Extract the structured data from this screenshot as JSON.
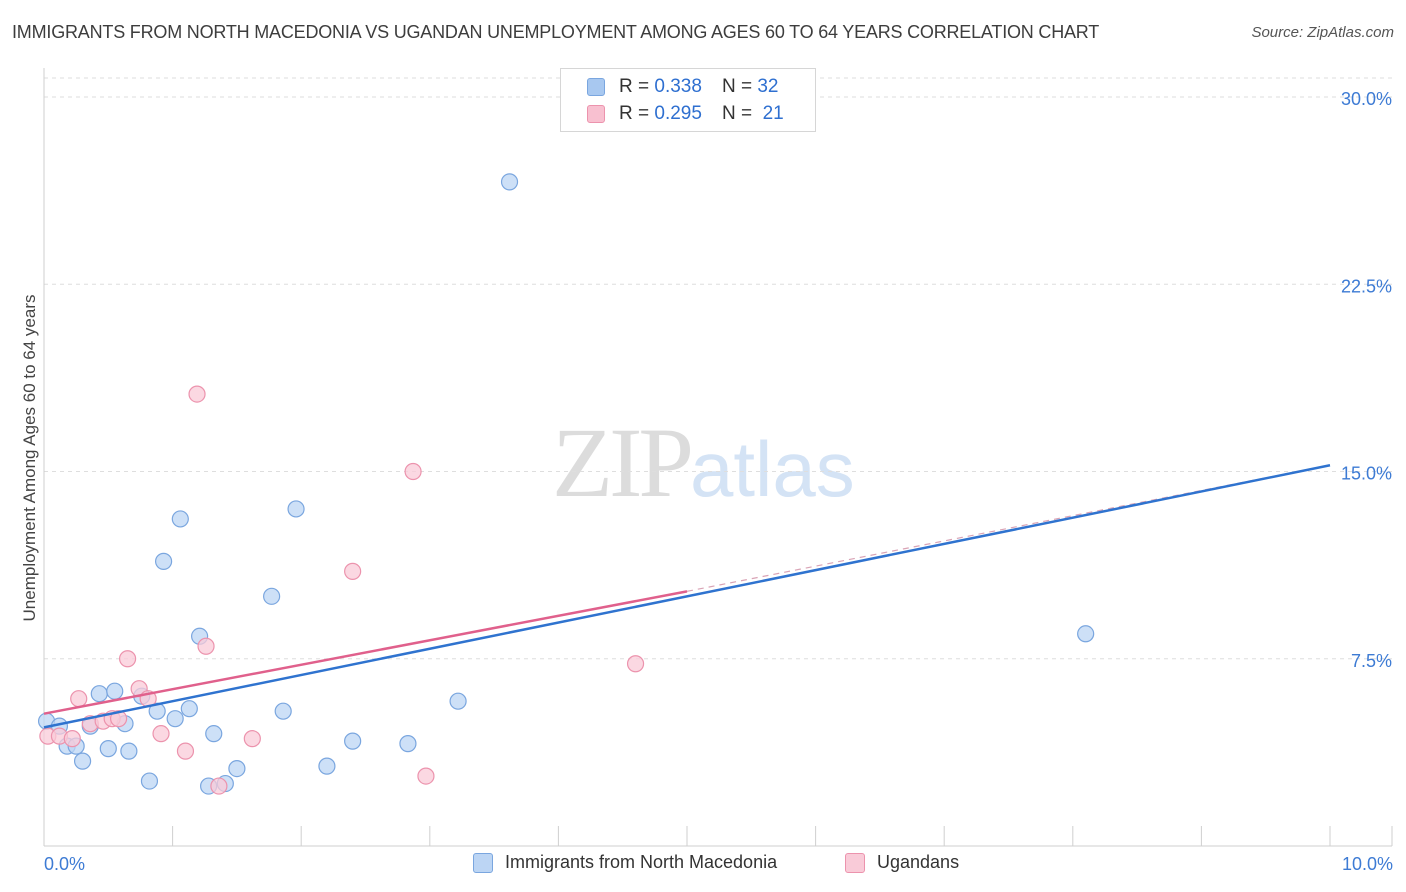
{
  "header": {
    "title": "IMMIGRANTS FROM NORTH MACEDONIA VS UGANDAN UNEMPLOYMENT AMONG AGES 60 TO 64 YEARS CORRELATION CHART",
    "source": "Source: ZipAtlas.com"
  },
  "watermark": {
    "zip": "ZIP",
    "atlas": "atlas"
  },
  "legend": {
    "r_label": "R =",
    "n_label": "N =",
    "rows": [
      {
        "r": "0.338",
        "n": "32",
        "color": "#a8c8f0",
        "border": "#7aa6df"
      },
      {
        "r": "0.295",
        "n": "21",
        "color": "#f8c0d0",
        "border": "#ec93ad"
      }
    ]
  },
  "bottom_legend": [
    {
      "label": "Immigrants from North Macedonia",
      "color": "#bcd5f4",
      "border": "#7aa6df"
    },
    {
      "label": "Ugandans",
      "color": "#f9cbd8",
      "border": "#ec93ad"
    }
  ],
  "chart_data": {
    "type": "scatter",
    "title": "IMMIGRANTS FROM NORTH MACEDONIA VS UGANDAN UNEMPLOYMENT AMONG AGES 60 TO 64 YEARS CORRELATION CHART",
    "xlabel": "",
    "ylabel": "Unemployment Among Ages 60 to 64 years",
    "xlim": [
      0,
      10
    ],
    "ylim": [
      0,
      31
    ],
    "x_tick_labels": [
      {
        "value": 0,
        "label": "0.0%"
      },
      {
        "value": 10,
        "label": "10.0%"
      }
    ],
    "y_ticks": [
      {
        "value": 7.5,
        "label": "7.5%"
      },
      {
        "value": 15,
        "label": "15.0%"
      },
      {
        "value": 22.5,
        "label": "22.5%"
      },
      {
        "value": 30,
        "label": "30.0%"
      }
    ],
    "grid": true,
    "series": [
      {
        "name": "Immigrants from North Macedonia",
        "color": "#2f73cf",
        "fill": "#bcd5f4",
        "stroke": "#7aa6df",
        "points": [
          {
            "x": 0.02,
            "y": 5.0
          },
          {
            "x": 0.12,
            "y": 4.8
          },
          {
            "x": 0.18,
            "y": 4.0
          },
          {
            "x": 0.25,
            "y": 4.0
          },
          {
            "x": 0.3,
            "y": 3.4
          },
          {
            "x": 0.36,
            "y": 4.8
          },
          {
            "x": 0.43,
            "y": 6.1
          },
          {
            "x": 0.5,
            "y": 3.9
          },
          {
            "x": 0.55,
            "y": 6.2
          },
          {
            "x": 0.63,
            "y": 4.9
          },
          {
            "x": 0.66,
            "y": 3.8
          },
          {
            "x": 0.76,
            "y": 6.0
          },
          {
            "x": 0.82,
            "y": 2.6
          },
          {
            "x": 0.88,
            "y": 5.4
          },
          {
            "x": 0.93,
            "y": 11.4
          },
          {
            "x": 1.02,
            "y": 5.1
          },
          {
            "x": 1.06,
            "y": 13.1
          },
          {
            "x": 1.13,
            "y": 5.5
          },
          {
            "x": 1.21,
            "y": 8.4
          },
          {
            "x": 1.28,
            "y": 2.4
          },
          {
            "x": 1.32,
            "y": 4.5
          },
          {
            "x": 1.41,
            "y": 2.5
          },
          {
            "x": 1.5,
            "y": 3.1
          },
          {
            "x": 1.77,
            "y": 10.0
          },
          {
            "x": 1.86,
            "y": 5.4
          },
          {
            "x": 1.96,
            "y": 13.5
          },
          {
            "x": 2.2,
            "y": 3.2
          },
          {
            "x": 2.4,
            "y": 4.2
          },
          {
            "x": 2.83,
            "y": 4.1
          },
          {
            "x": 3.22,
            "y": 5.8
          },
          {
            "x": 3.62,
            "y": 26.6
          },
          {
            "x": 8.1,
            "y": 8.5
          }
        ],
        "trend": {
          "x0": 0,
          "y0": 4.75,
          "x1": 10,
          "y1": 15.25
        }
      },
      {
        "name": "Ugandans",
        "color": "#e0608c",
        "fill": "#f9cbd8",
        "stroke": "#ec93ad",
        "points": [
          {
            "x": 0.03,
            "y": 4.4
          },
          {
            "x": 0.12,
            "y": 4.4
          },
          {
            "x": 0.22,
            "y": 4.3
          },
          {
            "x": 0.27,
            "y": 5.9
          },
          {
            "x": 0.36,
            "y": 4.9
          },
          {
            "x": 0.46,
            "y": 5.0
          },
          {
            "x": 0.53,
            "y": 5.1
          },
          {
            "x": 0.58,
            "y": 5.1
          },
          {
            "x": 0.65,
            "y": 7.5
          },
          {
            "x": 0.74,
            "y": 6.3
          },
          {
            "x": 0.81,
            "y": 5.9
          },
          {
            "x": 0.91,
            "y": 4.5
          },
          {
            "x": 1.1,
            "y": 3.8
          },
          {
            "x": 1.19,
            "y": 18.1
          },
          {
            "x": 1.26,
            "y": 8.0
          },
          {
            "x": 1.36,
            "y": 2.4
          },
          {
            "x": 1.62,
            "y": 4.3
          },
          {
            "x": 2.4,
            "y": 11.0
          },
          {
            "x": 2.87,
            "y": 15.0
          },
          {
            "x": 2.97,
            "y": 2.8
          },
          {
            "x": 4.6,
            "y": 7.3
          }
        ],
        "trend": {
          "x0": 0,
          "y0": 5.3,
          "x1": 5.0,
          "y1": 10.2
        }
      }
    ],
    "trend_extension": {
      "x0": 5.0,
      "y0": 10.2,
      "x1": 10,
      "y1": 15.25,
      "style": "dashed"
    }
  }
}
